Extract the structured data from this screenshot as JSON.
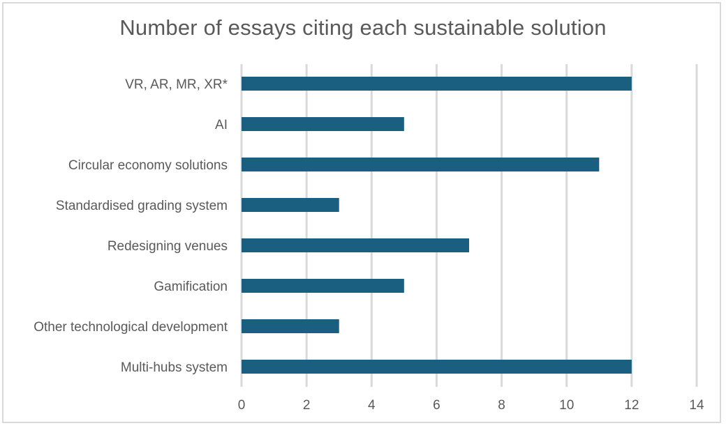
{
  "chart_data": {
    "type": "bar",
    "orientation": "horizontal",
    "title": "Number of essays citing each sustainable solution",
    "xlabel": "",
    "ylabel": "",
    "categories": [
      "VR, AR, MR, XR*",
      "AI",
      "Circular economy solutions",
      "Standardised grading system",
      "Redesigning venues",
      "Gamification",
      "Other technological development",
      "Multi-hubs system"
    ],
    "values": [
      12,
      5,
      11,
      3,
      7,
      5,
      3,
      12
    ],
    "xlim": [
      0,
      14
    ],
    "xticks": [
      0,
      2,
      4,
      6,
      8,
      10,
      12,
      14
    ],
    "grid": "vertical",
    "legend": "none",
    "bar_color": "#1a5e80",
    "grid_color": "#d9d9d9",
    "text_color": "#595959"
  }
}
